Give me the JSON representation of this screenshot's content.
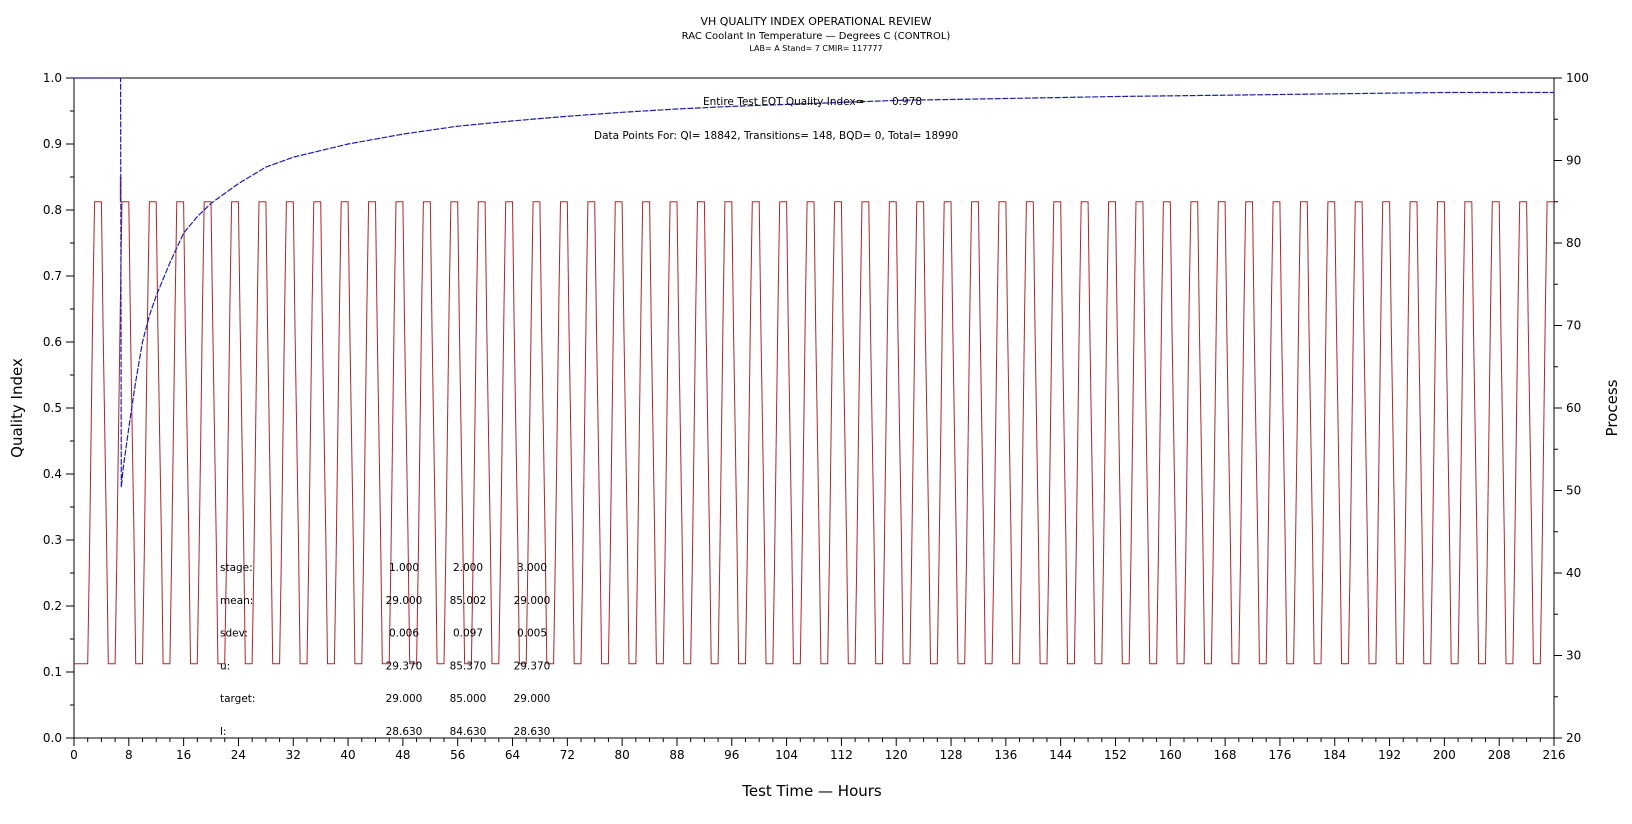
{
  "chart_data": {
    "type": "line",
    "title": "VH QUALITY INDEX OPERATIONAL REVIEW",
    "subtitle": "RAC Coolant In Temperature — Degrees C (CONTROL)",
    "subtitle2": "LAB= A Stand= 7 CMIR= 117777",
    "xlabel": "Test Time — Hours",
    "ylabel": "Quality Index",
    "y2label": "Process",
    "xlim": [
      0,
      216
    ],
    "ylim": [
      0,
      1
    ],
    "y2lim": [
      20,
      100
    ],
    "x_ticks": [
      0,
      8,
      16,
      24,
      32,
      40,
      48,
      56,
      64,
      72,
      80,
      88,
      96,
      104,
      112,
      120,
      128,
      136,
      144,
      152,
      160,
      168,
      176,
      184,
      192,
      200,
      208,
      216
    ],
    "y_ticks": [
      "0.0",
      "0.1",
      "0.2",
      "0.3",
      "0.4",
      "0.5",
      "0.6",
      "0.7",
      "0.8",
      "0.9",
      "1.0"
    ],
    "y2_ticks": [
      20,
      30,
      40,
      50,
      60,
      70,
      80,
      90,
      100
    ],
    "grid": false,
    "colors": {
      "quality_index": "#1f1fa8",
      "process": "#a8282a"
    },
    "series": [
      {
        "axis": "left",
        "x": [
          0,
          6.8,
          6.9,
          7.2,
          8,
          9,
          10,
          11,
          12,
          14,
          16,
          18,
          20,
          22,
          24,
          28,
          32,
          36,
          40,
          48,
          56,
          64,
          72,
          80,
          88,
          96,
          104,
          112,
          120,
          136,
          152,
          168,
          184,
          200,
          216
        ],
        "y": [
          1.0,
          1.0,
          0.38,
          0.41,
          0.47,
          0.54,
          0.6,
          0.64,
          0.67,
          0.72,
          0.765,
          0.79,
          0.81,
          0.825,
          0.84,
          0.865,
          0.88,
          0.89,
          0.9,
          0.915,
          0.927,
          0.935,
          0.942,
          0.948,
          0.953,
          0.957,
          0.96,
          0.963,
          0.966,
          0.969,
          0.972,
          0.974,
          0.976,
          0.978,
          0.978
        ]
      },
      {
        "axis": "right",
        "cycle": {
          "low": 29,
          "high": 85,
          "first_rise_hour": 2,
          "period_hours": 4,
          "cycles": 54,
          "ramp_hours": 1,
          "high_hold_hours": 1,
          "mid_ramp_value": 57
        },
        "spike": {
          "x": 6.8,
          "y": 88
        }
      }
    ]
  },
  "annotations": {
    "eot_label": "Entire Test EOT Quality Index=",
    "eot_value": "0.978",
    "datapoints": "Data Points For: QI= 18842, Transitions=   148, BQD=     0, Total= 18990"
  },
  "stats_table": {
    "rows": [
      {
        "label": "stage:",
        "values": [
          "1.000",
          "2.000",
          "3.000"
        ]
      },
      {
        "label": "mean:",
        "values": [
          "29.000",
          "85.002",
          "29.000"
        ]
      },
      {
        "label": "sdev:",
        "values": [
          "0.006",
          "0.097",
          "0.005"
        ]
      },
      {
        "label": "u:",
        "values": [
          "29.370",
          "85.370",
          "29.370"
        ]
      },
      {
        "label": "target:",
        "values": [
          "29.000",
          "85.000",
          "29.000"
        ]
      },
      {
        "label": "l:",
        "values": [
          "28.630",
          "84.630",
          "28.630"
        ]
      }
    ]
  }
}
